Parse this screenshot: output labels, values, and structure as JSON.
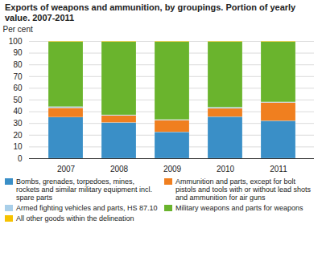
{
  "chart_data": {
    "type": "bar",
    "title": "Exports of weapons and ammunition, by groupings. Portion of yearly value. 2007-2011",
    "y_label": "Per cent",
    "stacked": true,
    "grid": true,
    "legend": "bottom",
    "categories": [
      "2007",
      "2008",
      "2009",
      "2010",
      "2011"
    ],
    "ylim": [
      0,
      100
    ],
    "yticks": [
      0,
      10,
      20,
      30,
      40,
      50,
      60,
      70,
      80,
      90,
      100
    ],
    "series": [
      {
        "name": "Bombs, grenades, torpedoes, mines, rockets and similar military equipment incl. spare parts",
        "color": "#3a8fc7",
        "values": [
          35,
          30.5,
          22.5,
          35.5,
          32
        ]
      },
      {
        "name": "Ammunition and parts, except for bolt pistols and tools with or without lead shots and ammunition for air guns",
        "color": "#f07f1f",
        "values": [
          8,
          6,
          10,
          7,
          15.5
        ]
      },
      {
        "name": "Armed fighting vehicles and parts, HS 87.10",
        "color": "#a9cfe9",
        "values": [
          1,
          0.5,
          0.5,
          1,
          0.5
        ]
      },
      {
        "name": "Military weapons and parts for weapons",
        "color": "#6ab42d",
        "values": [
          55.5,
          62.5,
          66.5,
          56,
          51.5
        ]
      },
      {
        "name": "All other goods within the delineation",
        "color": "#f6c200",
        "values": [
          0.5,
          0.5,
          0.5,
          0.5,
          0.5
        ]
      }
    ]
  }
}
